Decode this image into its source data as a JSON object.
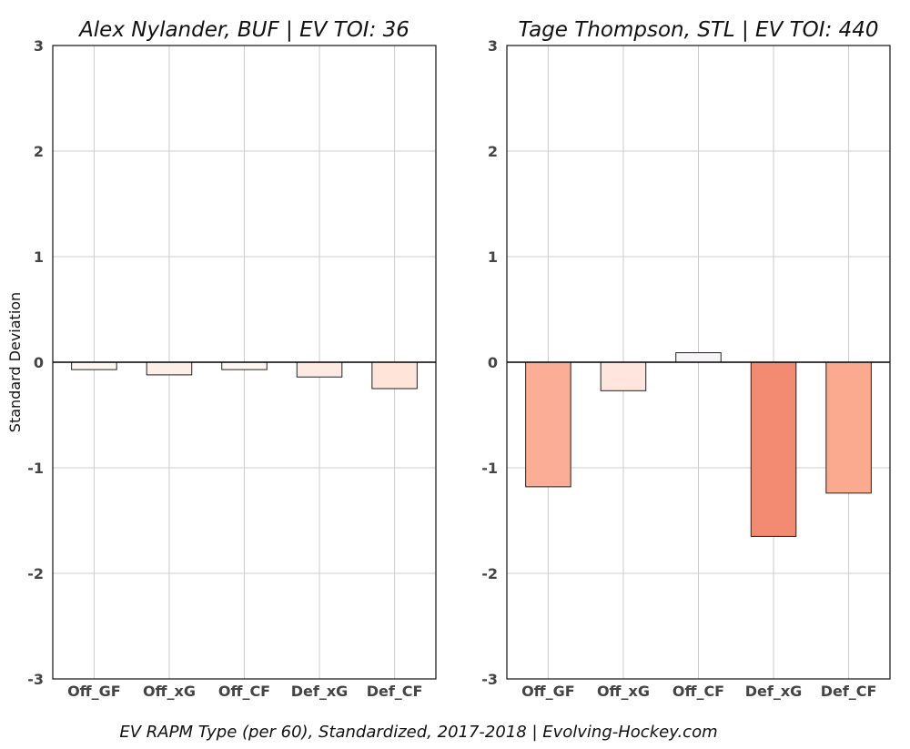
{
  "chart_data": [
    {
      "type": "bar",
      "title": "Alex Nylander, BUF  |  EV TOI: 36",
      "ylabel": "Standard Deviation",
      "categories": [
        "Off_GF",
        "Off_xG",
        "Off_CF",
        "Def_xG",
        "Def_CF"
      ],
      "values": [
        -0.07,
        -0.12,
        -0.07,
        -0.14,
        -0.25
      ],
      "colors": [
        "#fdf6f3",
        "#fdeee8",
        "#fdf6f3",
        "#fdeae3",
        "#fee4d9"
      ],
      "ylim": [
        -3,
        3
      ],
      "yticks": [
        -3,
        -2,
        -1,
        0,
        1,
        2,
        3
      ],
      "grid": true
    },
    {
      "type": "bar",
      "title": "Tage Thompson, STL  |  EV TOI: 440",
      "ylabel": "",
      "categories": [
        "Off_GF",
        "Off_xG",
        "Off_CF",
        "Def_xG",
        "Def_CF"
      ],
      "values": [
        -1.18,
        -0.27,
        0.09,
        -1.65,
        -1.24
      ],
      "colors": [
        "#fbad95",
        "#fee6de",
        "#f6f4f7",
        "#f28b72",
        "#fba98f"
      ],
      "ylim": [
        -3,
        3
      ],
      "yticks": [
        -3,
        -2,
        -1,
        0,
        1,
        2,
        3
      ],
      "grid": true
    }
  ],
  "caption": "EV RAPM Type (per 60), Standardized, 2017-2018    |    Evolving-Hockey.com"
}
